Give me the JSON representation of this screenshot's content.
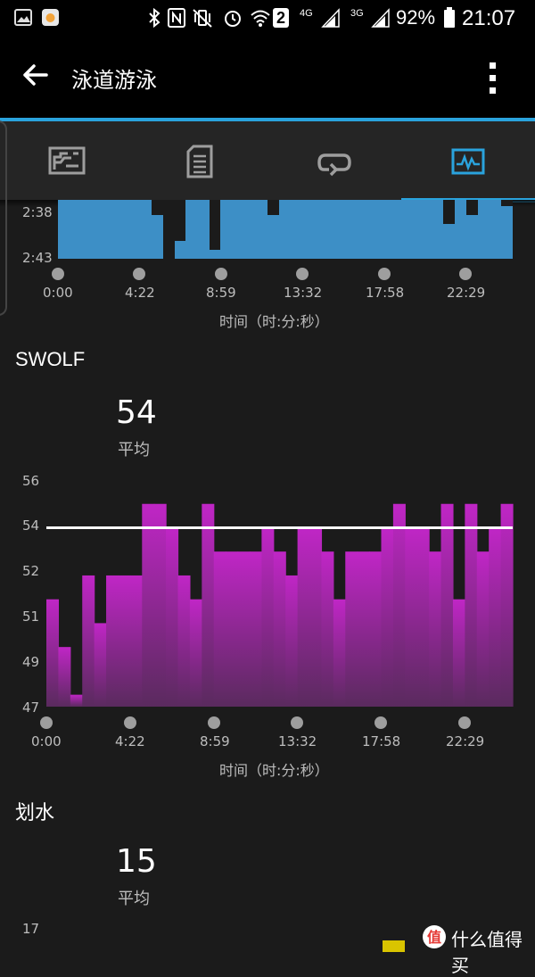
{
  "status_bar": {
    "network_4g": "4G",
    "network_3g": "3G",
    "sim_number": "2",
    "battery": "92%",
    "time": "21:07"
  },
  "app_bar": {
    "title": "泳道游泳",
    "back_icon": "arrow-left-icon",
    "menu_icon": "more-vertical-icon"
  },
  "tabs": [
    {
      "icon": "summary-chart-icon",
      "selected": false
    },
    {
      "icon": "details-document-icon",
      "selected": false
    },
    {
      "icon": "laps-loop-icon",
      "selected": false
    },
    {
      "icon": "charts-activity-icon",
      "selected": true
    }
  ],
  "colors": {
    "accent": "#2aa3dd",
    "pace": "#3d8fc6",
    "swolf": "#c026c6",
    "stroke": "#d9c400"
  },
  "pace_chart": {
    "y_ticks": [
      "2:38",
      "2:43"
    ],
    "x_ticks": [
      "0:00",
      "4:22",
      "8:59",
      "13:32",
      "17:58",
      "22:29"
    ],
    "x_axis_title": "时间（时:分:秒）"
  },
  "swolf": {
    "title": "SWOLF",
    "average_value": "54",
    "average_label": "平均",
    "x_axis_title": "时间（时:分:秒）"
  },
  "stroke": {
    "title": "划水",
    "average_value": "15",
    "average_label": "平均",
    "y_top_tick": "17"
  },
  "watermark": "什么值得买",
  "chart_data": [
    {
      "type": "area",
      "title": "",
      "ylabel": "",
      "xlabel": "时间（时:分:秒）",
      "y_ticks": [
        "2:38",
        "2:43"
      ],
      "x_ticks": [
        "0:00",
        "4:22",
        "8:59",
        "13:32",
        "17:58",
        "22:29"
      ]
    },
    {
      "type": "bar",
      "title": "SWOLF",
      "xlabel": "时间（时:分:秒）",
      "x_ticks": [
        "0:00",
        "4:22",
        "8:59",
        "13:32",
        "17:58",
        "22:29"
      ],
      "y_ticks": [
        56,
        54,
        52,
        51,
        49,
        47
      ],
      "ylim": [
        47,
        56.5
      ],
      "average": 54,
      "values": [
        51.5,
        49.5,
        47.5,
        52.5,
        50.5,
        52.5,
        52.5,
        52.5,
        55.5,
        55.5,
        54.5,
        52.5,
        51.5,
        55.5,
        53.5,
        53.5,
        53.5,
        53.5,
        54.5,
        53.5,
        52.5,
        54.5,
        54.5,
        53.5,
        51.5,
        53.5,
        53.5,
        53.5,
        54.5,
        55.5,
        54.5,
        54.5,
        53.5,
        55.5,
        51.5,
        55.5,
        53.5,
        54.5,
        55.5
      ]
    }
  ]
}
